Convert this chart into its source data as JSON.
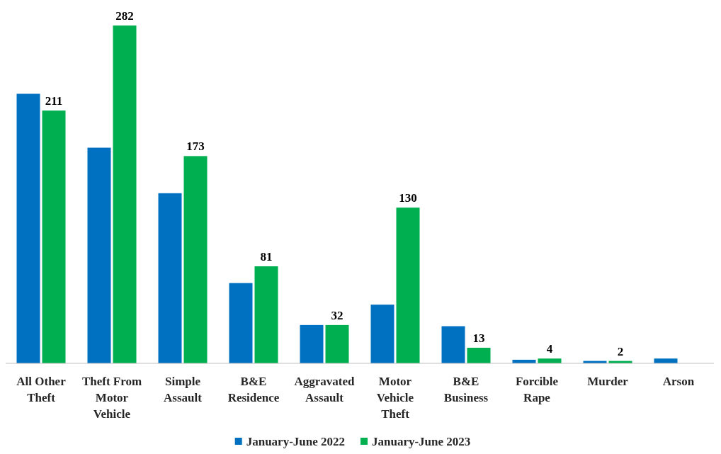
{
  "chart_data": {
    "type": "bar",
    "categories": [
      "All Other Theft",
      "Theft From Motor Vehicle",
      "Simple Assault",
      "B&E Residence",
      "Aggravated Assault",
      "Motor Vehicle Theft",
      "B&E Business",
      "Forcible Rape",
      "Murder",
      "Arson"
    ],
    "series": [
      {
        "name": "January-June 2022",
        "color": "#0070c0",
        "values": [
          225,
          180,
          142,
          67,
          32,
          49,
          31,
          3,
          2,
          4
        ]
      },
      {
        "name": "January-June 2023",
        "color": "#00b050",
        "values": [
          211,
          282,
          173,
          81,
          32,
          130,
          13,
          4,
          2,
          null
        ],
        "value_labels": [
          "211",
          "282",
          "173",
          "81",
          "32",
          "130",
          "13",
          "4",
          "2",
          null
        ]
      }
    ],
    "legend": "bottom"
  }
}
